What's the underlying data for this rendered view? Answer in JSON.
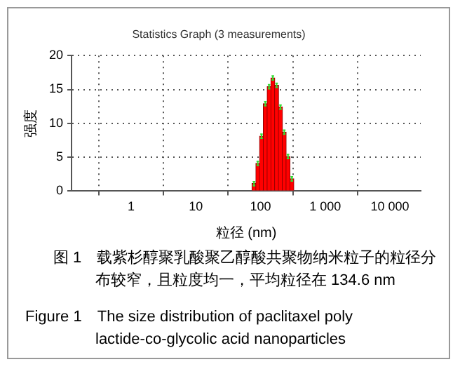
{
  "chart_data": {
    "type": "histogram",
    "title": "Statistics Graph (3 measurements)",
    "xlabel": "粒径 (nm)",
    "ylabel": "强度",
    "bins": [
      74,
      85,
      97,
      111,
      127,
      145,
      166,
      190,
      218,
      249,
      285,
      327
    ],
    "values": [
      1.1,
      4.1,
      8.1,
      12.9,
      15.4,
      16.7,
      15.6,
      12.4,
      8.7,
      5.1,
      1.8
    ],
    "errors": [
      0.3,
      0.3,
      0.3,
      0.3,
      0.3,
      0.3,
      0.3,
      0.3,
      0.3,
      0.3,
      0.3
    ],
    "color": "#ff0000",
    "log": "x",
    "xlim": [
      0.12,
      30000
    ],
    "xticks": [
      1,
      10,
      100,
      {
        "value": 1000,
        "label": "1 000"
      },
      {
        "value": 10000,
        "label": "10 000"
      }
    ],
    "ylim": [
      0,
      20
    ],
    "yticks": [
      0,
      5,
      10,
      15,
      20
    ],
    "grid": true,
    "annotations": [
      "图 1　载紫杉醇聚乳酸聚乙醇酸共聚物纳米粒子的粒径分布较窄，且粒度均一，平均粒径在 134.6 nm",
      "Figure 1　The size distribution of paclitaxel poly lactide-co-glycolic acid nanoparticles"
    ]
  }
}
